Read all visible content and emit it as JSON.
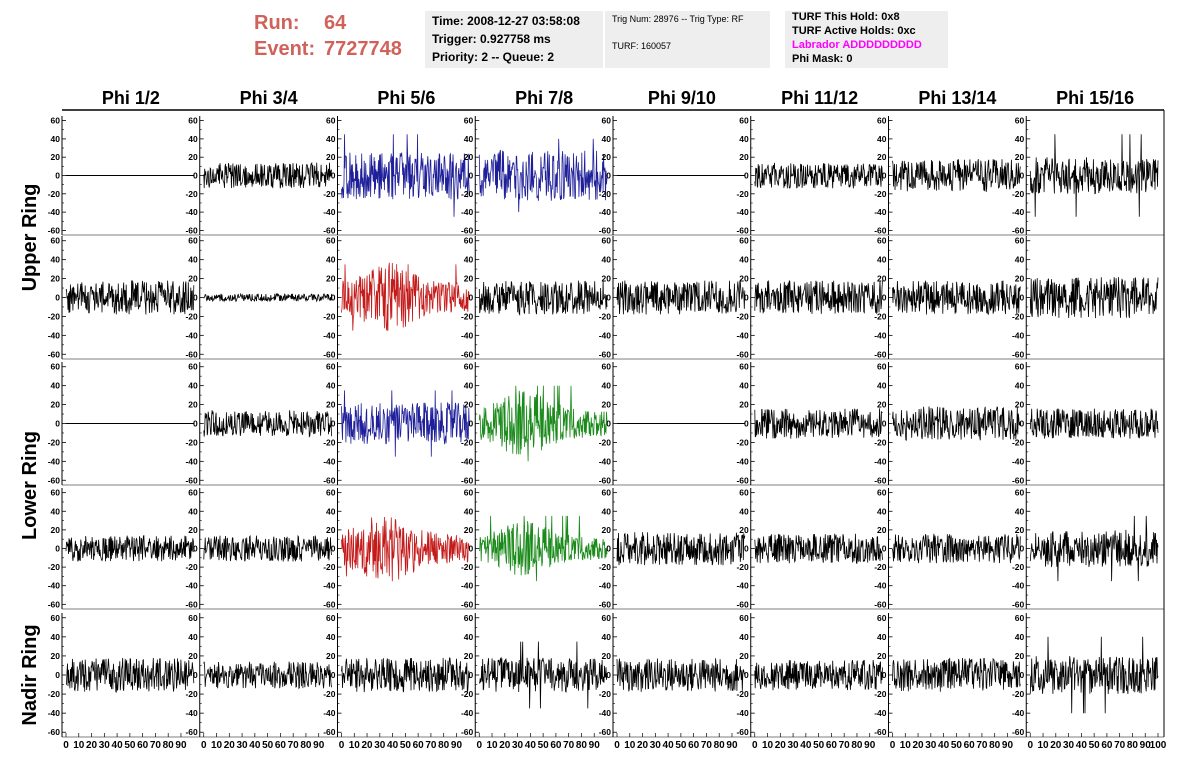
{
  "header": {
    "run_label": "Run:",
    "run_value": "64",
    "event_label": "Event:",
    "event_value": "7727748"
  },
  "info_panel_1": {
    "time": "Time: 2008-12-27 03:58:08",
    "trigger": "Trigger: 0.927758 ms",
    "priority": "Priority: 2 -- Queue: 2"
  },
  "info_panel_2": {
    "trig": "Trig Num: 28976 -- Trig Type: RF",
    "turf": "TURF: 160057"
  },
  "info_panel_3": {
    "this_hold": "TURF This Hold: 0x8",
    "active_holds": "TURF Active Holds: 0xc",
    "labrador": "Labrador ADDDDDDDDD",
    "phi_mask": "Phi Mask: 0"
  },
  "colors": {
    "accent_red": "#d0625a",
    "magenta": "#ff00ff",
    "trace_default": "#000000",
    "trace_blue": "#1f1f9a",
    "trace_red": "#c41a1a",
    "trace_green": "#1a8a1a"
  },
  "chart_data": {
    "type": "line",
    "columns": [
      "Phi 1/2",
      "Phi 3/4",
      "Phi 5/6",
      "Phi 7/8",
      "Phi 9/10",
      "Phi 11/12",
      "Phi 13/14",
      "Phi 15/16"
    ],
    "rows": [
      "Upper Ring",
      "Upper Ring",
      "Lower Ring",
      "Lower Ring",
      "Nadir Ring"
    ],
    "row_labels": [
      {
        "text": "Upper Ring",
        "rows": [
          0,
          1
        ]
      },
      {
        "text": "Lower Ring",
        "rows": [
          2,
          3
        ]
      },
      {
        "text": "Nadir Ring",
        "rows": [
          4
        ]
      }
    ],
    "xlim": [
      0,
      100
    ],
    "ylim": [
      -65,
      65
    ],
    "y_ticks": [
      -60,
      -40,
      -20,
      0,
      20,
      40,
      60
    ],
    "x_ticks": [
      "0",
      "10",
      "20",
      "30",
      "40",
      "50",
      "60",
      "70",
      "80",
      "90",
      "100"
    ],
    "panels": [
      [
        {
          "style": "flat",
          "color": "black",
          "amp": 0
        },
        {
          "style": "noise",
          "color": "black",
          "amp": 14
        },
        {
          "style": "noise",
          "color": "blue",
          "amp": 26,
          "peak": 45
        },
        {
          "style": "noise",
          "color": "blue",
          "amp": 28,
          "peak": 40
        },
        {
          "style": "flat",
          "color": "black",
          "amp": 0
        },
        {
          "style": "noise",
          "color": "black",
          "amp": 14
        },
        {
          "style": "noise",
          "color": "black",
          "amp": 18
        },
        {
          "style": "noise",
          "color": "black",
          "amp": 20,
          "peak": 45
        }
      ],
      [
        {
          "style": "noise",
          "color": "black",
          "amp": 18
        },
        {
          "style": "quiet",
          "color": "black",
          "amp": 4
        },
        {
          "style": "noise",
          "color": "red",
          "amp": 28,
          "peak": 35
        },
        {
          "style": "noise",
          "color": "black",
          "amp": 18
        },
        {
          "style": "noise",
          "color": "black",
          "amp": 18
        },
        {
          "style": "noise",
          "color": "black",
          "amp": 18
        },
        {
          "style": "noise",
          "color": "black",
          "amp": 18
        },
        {
          "style": "noise",
          "color": "black",
          "amp": 22
        }
      ],
      [
        {
          "style": "flat",
          "color": "black",
          "amp": 0
        },
        {
          "style": "noise",
          "color": "black",
          "amp": 14
        },
        {
          "style": "noise",
          "color": "blue",
          "amp": 22,
          "peak": 35
        },
        {
          "style": "noise",
          "color": "green",
          "amp": 26,
          "peak": 40
        },
        {
          "style": "flat",
          "color": "black",
          "amp": 0
        },
        {
          "style": "noise",
          "color": "black",
          "amp": 16
        },
        {
          "style": "noise",
          "color": "black",
          "amp": 18
        },
        {
          "style": "noise",
          "color": "black",
          "amp": 16
        }
      ],
      [
        {
          "style": "noise",
          "color": "black",
          "amp": 14
        },
        {
          "style": "noise",
          "color": "black",
          "amp": 14
        },
        {
          "style": "noise",
          "color": "red",
          "amp": 28,
          "peak": 30
        },
        {
          "style": "noise",
          "color": "green",
          "amp": 22,
          "peak": 35
        },
        {
          "style": "noise",
          "color": "black",
          "amp": 18
        },
        {
          "style": "noise",
          "color": "black",
          "amp": 16
        },
        {
          "style": "noise",
          "color": "black",
          "amp": 16
        },
        {
          "style": "noise",
          "color": "black",
          "amp": 20,
          "peak": 35
        }
      ],
      [
        {
          "style": "noise",
          "color": "black",
          "amp": 18
        },
        {
          "style": "noise",
          "color": "black",
          "amp": 14
        },
        {
          "style": "noise",
          "color": "black",
          "amp": 18
        },
        {
          "style": "noise",
          "color": "black",
          "amp": 18,
          "peak": 35
        },
        {
          "style": "noise",
          "color": "black",
          "amp": 18
        },
        {
          "style": "noise",
          "color": "black",
          "amp": 16
        },
        {
          "style": "noise",
          "color": "black",
          "amp": 18
        },
        {
          "style": "noise",
          "color": "black",
          "amp": 20,
          "peak": 40
        }
      ]
    ]
  }
}
